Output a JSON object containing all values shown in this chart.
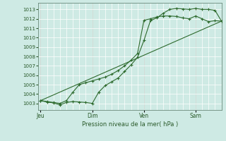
{
  "bg_color": "#ceeae4",
  "grid_color": "#ffffff",
  "line_color": "#2d6a2d",
  "marker_color": "#2d6a2d",
  "xlabel": "Pression niveau de la mer( hPa )",
  "ylim": [
    1002.3,
    1013.7
  ],
  "yticks": [
    1003,
    1004,
    1005,
    1006,
    1007,
    1008,
    1009,
    1010,
    1011,
    1012,
    1013
  ],
  "xtick_labels": [
    "Jeu",
    "Dim",
    "Ven",
    "Sam"
  ],
  "xtick_positions": [
    0,
    24,
    48,
    72
  ],
  "vline_positions": [
    0,
    24,
    48,
    72
  ],
  "xlim": [
    -1,
    84
  ],
  "series1_x": [
    0,
    3,
    6,
    9,
    12,
    15,
    18,
    21,
    24,
    27,
    30,
    33,
    36,
    39,
    42,
    45,
    48,
    51,
    54,
    57,
    60,
    63,
    66,
    69,
    72,
    75,
    78,
    81,
    84
  ],
  "series1_y": [
    1003.3,
    1003.15,
    1003.05,
    1002.85,
    1003.1,
    1003.2,
    1003.15,
    1003.1,
    1003.0,
    1004.2,
    1004.9,
    1005.3,
    1005.7,
    1006.4,
    1007.1,
    1007.9,
    1009.7,
    1011.8,
    1012.1,
    1012.6,
    1013.0,
    1013.1,
    1013.05,
    1013.0,
    1013.1,
    1013.0,
    1013.0,
    1012.9,
    1011.75
  ],
  "series2_x": [
    0,
    3,
    6,
    9,
    12,
    15,
    18,
    21,
    24,
    27,
    30,
    33,
    36,
    39,
    42,
    45,
    48,
    51,
    54,
    57,
    60,
    63,
    66,
    69,
    72,
    75,
    78,
    81,
    84
  ],
  "series2_y": [
    1003.3,
    1003.2,
    1003.1,
    1003.0,
    1003.3,
    1004.2,
    1005.0,
    1005.2,
    1005.4,
    1005.6,
    1005.8,
    1006.1,
    1006.5,
    1007.0,
    1007.6,
    1008.3,
    1011.85,
    1012.0,
    1012.2,
    1012.3,
    1012.3,
    1012.25,
    1012.1,
    1012.0,
    1012.3,
    1012.0,
    1011.7,
    1011.8,
    1011.75
  ],
  "series3_x": [
    0,
    84
  ],
  "series3_y": [
    1003.3,
    1011.75
  ]
}
